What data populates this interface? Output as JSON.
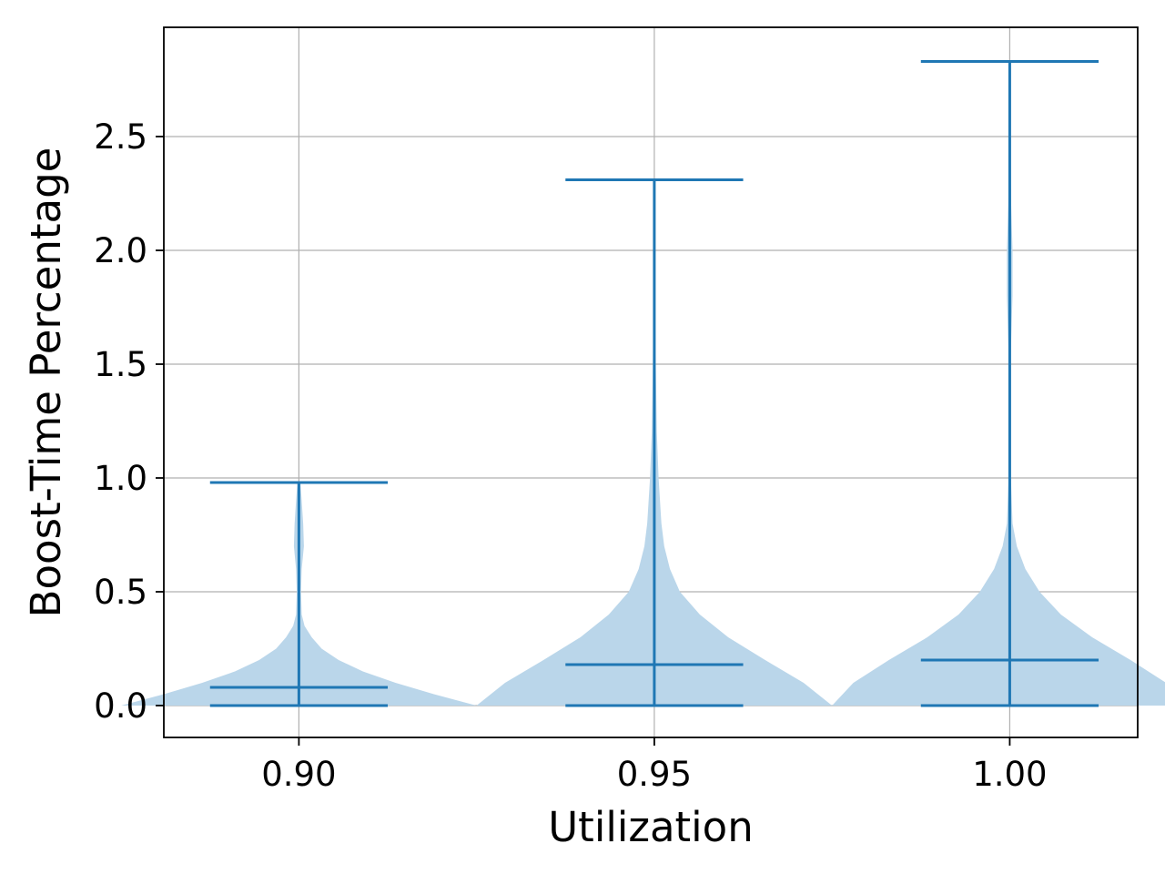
{
  "chart_data": {
    "type": "violin",
    "xlabel": "Utilization",
    "ylabel": "Boost-Time Percentage",
    "categories": [
      "0.90",
      "0.95",
      "1.00"
    ],
    "x_values": [
      0.9,
      0.95,
      1.0
    ],
    "xlim": [
      0.881,
      1.018
    ],
    "ylim": [
      -0.14,
      2.98
    ],
    "yticks": [
      0.0,
      0.5,
      1.0,
      1.5,
      2.0,
      2.5
    ],
    "ytick_labels": [
      "0.0",
      "0.5",
      "1.0",
      "1.5",
      "2.0",
      "2.5"
    ],
    "grid": true,
    "colors": {
      "body": "#bad6ea",
      "line": "#1f77b4",
      "grid": "#b0b0b0"
    },
    "violins": [
      {
        "category": "0.90",
        "min": 0.0,
        "median": 0.08,
        "max": 0.98,
        "density": [
          [
            0.0,
            0.0125
          ],
          [
            0.05,
            0.0095
          ],
          [
            0.1,
            0.0068
          ],
          [
            0.15,
            0.0045
          ],
          [
            0.2,
            0.0028
          ],
          [
            0.25,
            0.0016
          ],
          [
            0.3,
            0.0009
          ],
          [
            0.35,
            0.0004
          ],
          [
            0.4,
            0.0002
          ],
          [
            0.5,
            0.00015
          ],
          [
            0.6,
            0.0002
          ],
          [
            0.7,
            0.00035
          ],
          [
            0.8,
            0.0003
          ],
          [
            0.9,
            0.0002
          ],
          [
            0.98,
            0.0001
          ]
        ]
      },
      {
        "category": "0.95",
        "min": 0.0,
        "median": 0.18,
        "max": 2.31,
        "density": [
          [
            0.0,
            0.0125
          ],
          [
            0.1,
            0.0105
          ],
          [
            0.2,
            0.0078
          ],
          [
            0.3,
            0.0052
          ],
          [
            0.4,
            0.0032
          ],
          [
            0.5,
            0.0018
          ],
          [
            0.6,
            0.0011
          ],
          [
            0.7,
            0.0007
          ],
          [
            0.8,
            0.0005
          ],
          [
            1.0,
            0.0003
          ],
          [
            1.2,
            0.00018
          ],
          [
            1.5,
            0.0001
          ],
          [
            1.8,
            5e-05
          ],
          [
            2.1,
            3e-05
          ],
          [
            2.31,
            2e-05
          ]
        ]
      },
      {
        "category": "1.00",
        "min": 0.0,
        "median": 0.2,
        "max": 2.83,
        "density": [
          [
            0.0,
            0.0125
          ],
          [
            0.1,
            0.011
          ],
          [
            0.2,
            0.0085
          ],
          [
            0.3,
            0.0058
          ],
          [
            0.4,
            0.0036
          ],
          [
            0.5,
            0.0021
          ],
          [
            0.6,
            0.0011
          ],
          [
            0.7,
            0.0005
          ],
          [
            0.8,
            0.0002
          ],
          [
            1.0,
            8e-05
          ],
          [
            1.2,
            4e-05
          ],
          [
            1.5,
            5e-05
          ],
          [
            1.8,
            0.0002
          ],
          [
            2.0,
            0.0002
          ],
          [
            2.2,
            0.0001
          ],
          [
            2.5,
            4e-05
          ],
          [
            2.83,
            2e-05
          ]
        ]
      }
    ]
  }
}
